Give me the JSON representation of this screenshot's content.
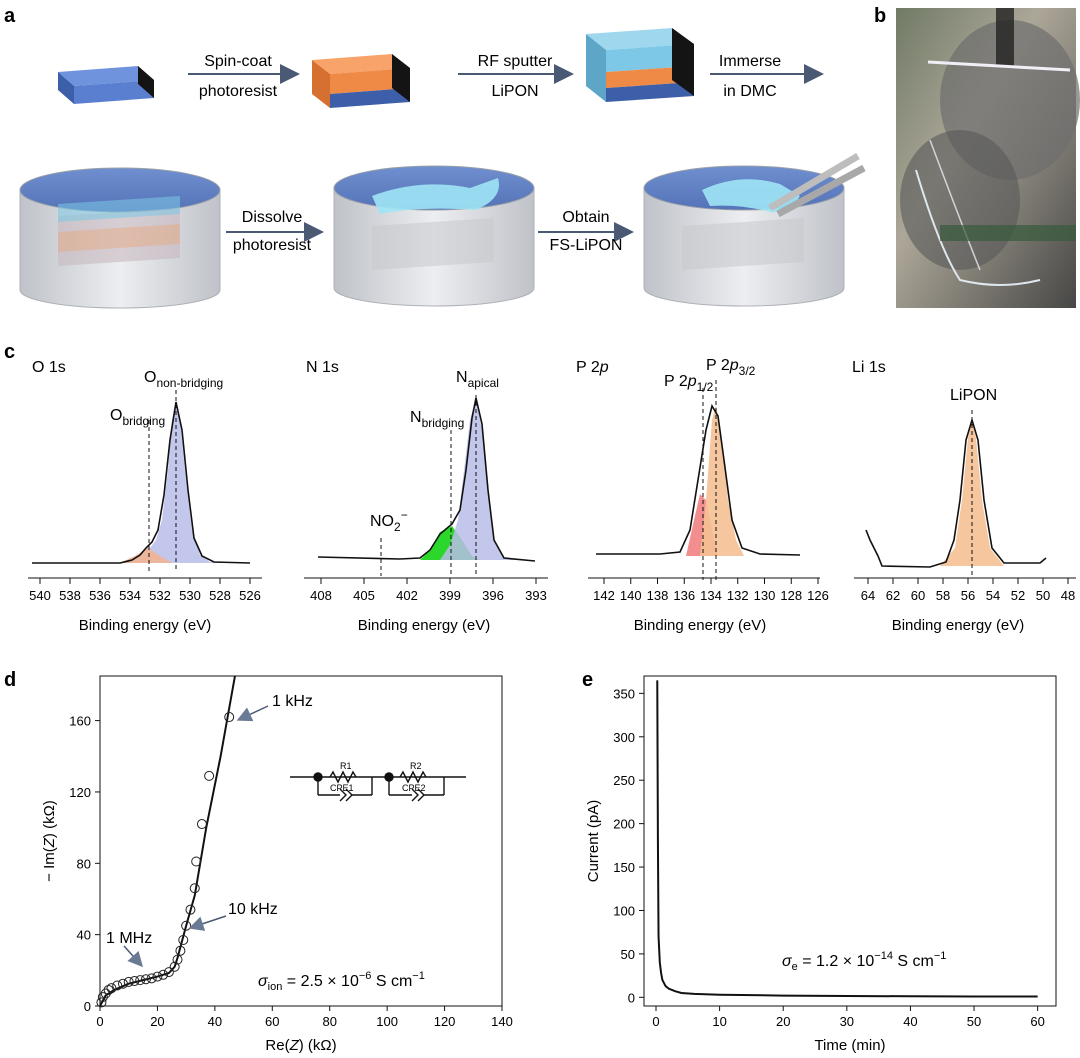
{
  "panels": {
    "a": "a",
    "b": "b",
    "c": "c",
    "d": "d",
    "e": "e"
  },
  "panel_a": {
    "steps": [
      {
        "line1": "Spin-coat",
        "line2": "photoresist"
      },
      {
        "line1": "RF sputter",
        "line2": "LiPON"
      },
      {
        "line1": "Immerse",
        "line2": "in DMC"
      },
      {
        "line1": "Dissolve",
        "line2": "photoresist"
      },
      {
        "line1": "Obtain",
        "line2": "FS-LiPON"
      }
    ]
  },
  "panel_c": {
    "xlabel": "Binding energy (eV)",
    "spectra": [
      {
        "title": "O 1s",
        "xticks": [
          "540",
          "538",
          "536",
          "534",
          "532",
          "530",
          "528",
          "526"
        ],
        "peak_labels": [
          {
            "main": "O",
            "sub": "non-bridging"
          },
          {
            "main": "O",
            "sub": "bridging"
          }
        ]
      },
      {
        "title": "N 1s",
        "xticks": [
          "408",
          "405",
          "402",
          "399",
          "396",
          "393"
        ],
        "peak_labels": [
          {
            "main": "N",
            "sub": "apical"
          },
          {
            "main": "N",
            "sub": "bridging"
          },
          {
            "main": "NO",
            "sub": "2",
            "sup": "−"
          }
        ]
      },
      {
        "title_main": "P 2",
        "title_italic": "p",
        "xticks": [
          "142",
          "140",
          "138",
          "136",
          "134",
          "132",
          "130",
          "128",
          "126"
        ],
        "peak_labels": [
          {
            "main": "P 2",
            "ital": "p",
            "sub": "1/2"
          },
          {
            "main": "P 2",
            "ital": "p",
            "sub": "3/2"
          }
        ]
      },
      {
        "title": "Li 1s",
        "xticks": [
          "64",
          "62",
          "60",
          "58",
          "56",
          "54",
          "52",
          "50",
          "48"
        ],
        "peak_labels": [
          {
            "main": "LiPON"
          }
        ]
      }
    ]
  },
  "chart_data": [
    {
      "type": "scatter",
      "panel": "d",
      "xlabel_main": "Re(",
      "xlabel_ital": "Z",
      "xlabel_end": ") (kΩ)",
      "ylabel_main": "− Im(",
      "ylabel_ital": "Z",
      "ylabel_end": ") (kΩ)",
      "xlim": [
        0,
        140
      ],
      "ylim": [
        0,
        185
      ],
      "xticks": [
        0,
        20,
        40,
        60,
        80,
        100,
        120,
        140
      ],
      "yticks": [
        0,
        40,
        80,
        120,
        160
      ],
      "points": [
        [
          0.5,
          2
        ],
        [
          1,
          5
        ],
        [
          2,
          7
        ],
        [
          3,
          9
        ],
        [
          4,
          10
        ],
        [
          6,
          11.5
        ],
        [
          8,
          12.5
        ],
        [
          10,
          13.5
        ],
        [
          12,
          14
        ],
        [
          14,
          14.5
        ],
        [
          16,
          15
        ],
        [
          18,
          15.5
        ],
        [
          20,
          16.5
        ],
        [
          22,
          17.5
        ],
        [
          24,
          19
        ],
        [
          26,
          22
        ],
        [
          27,
          26
        ],
        [
          28,
          31
        ],
        [
          29,
          37
        ],
        [
          30,
          45
        ],
        [
          31.5,
          54
        ],
        [
          33,
          66
        ],
        [
          33.5,
          81
        ],
        [
          35.5,
          102
        ],
        [
          38,
          129
        ],
        [
          45,
          162
        ]
      ],
      "fit_line": [
        [
          0,
          0
        ],
        [
          2,
          6
        ],
        [
          5,
          9
        ],
        [
          10,
          12.5
        ],
        [
          15,
          14.5
        ],
        [
          20,
          16.5
        ],
        [
          24,
          18.5
        ],
        [
          26,
          22
        ],
        [
          27,
          27
        ],
        [
          28,
          33
        ],
        [
          30,
          45
        ],
        [
          33,
          62
        ],
        [
          37,
          100
        ],
        [
          42,
          140
        ],
        [
          47,
          185
        ]
      ],
      "annotations": [
        "1 kHz",
        "10 kHz",
        "1 MHz"
      ],
      "sigma_label": {
        "sym": "σ",
        "sub": "ion",
        "eq": " = 2.5 × 10",
        "exp": "−6",
        "unit": " S cm",
        "unit_exp": "−1"
      },
      "circuit_labels": [
        "R1",
        "R2",
        "CPE1",
        "CPE2"
      ]
    },
    {
      "type": "line",
      "panel": "e",
      "xlabel": "Time (min)",
      "ylabel": "Current (pA)",
      "xlim": [
        0,
        61
      ],
      "ylim": [
        -10,
        370
      ],
      "xticks": [
        0,
        10,
        20,
        30,
        40,
        50,
        60
      ],
      "yticks": [
        0,
        50,
        100,
        150,
        200,
        250,
        300,
        350
      ],
      "points": [
        [
          0.2,
          365
        ],
        [
          0.3,
          180
        ],
        [
          0.4,
          70
        ],
        [
          0.6,
          40
        ],
        [
          0.8,
          28
        ],
        [
          1,
          20
        ],
        [
          1.5,
          13
        ],
        [
          2,
          10
        ],
        [
          3,
          7
        ],
        [
          4,
          5
        ],
        [
          6,
          4
        ],
        [
          10,
          3
        ],
        [
          20,
          2
        ],
        [
          30,
          1.5
        ],
        [
          40,
          1.2
        ],
        [
          50,
          1
        ],
        [
          60,
          1
        ]
      ],
      "sigma_label": {
        "sym": "σ",
        "sub": "e",
        "eq": " = 1.2 × 10",
        "exp": "−14",
        "unit": " S cm",
        "unit_exp": "−1"
      }
    }
  ]
}
